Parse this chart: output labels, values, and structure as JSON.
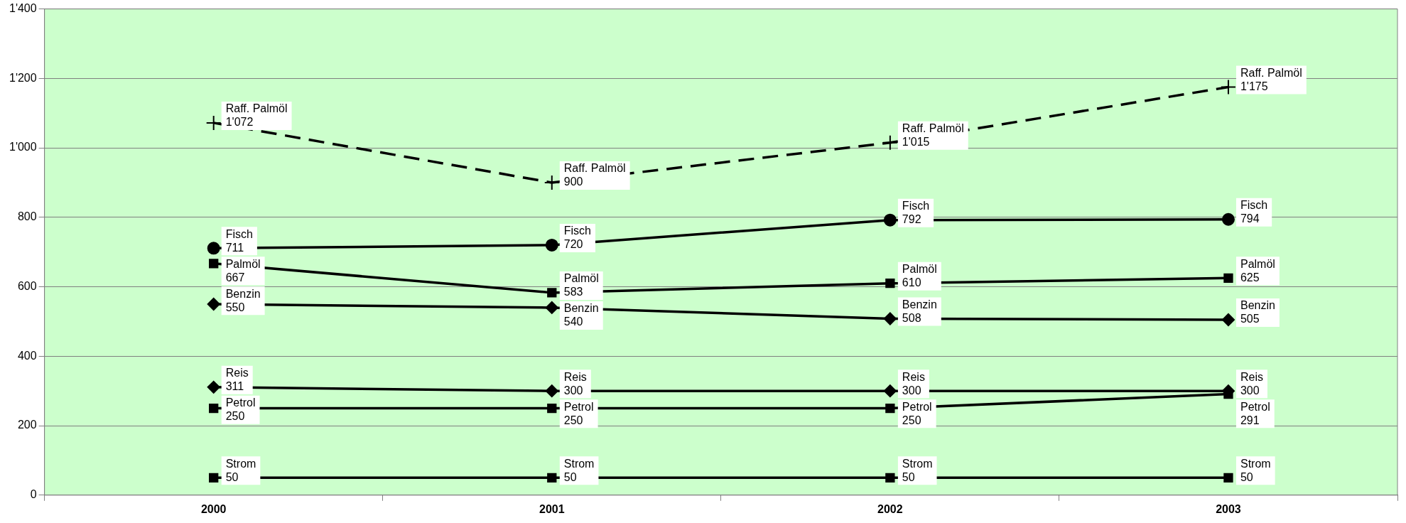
{
  "chart_data": {
    "type": "line",
    "categories": [
      "2000",
      "2001",
      "2002",
      "2003"
    ],
    "ylim": [
      0,
      1400
    ],
    "yticks": [
      0,
      {
        "value": 200,
        "label": "200"
      },
      {
        "value": 400,
        "label": "400"
      },
      {
        "value": 600,
        "label": "600"
      },
      {
        "value": 800,
        "label": "800"
      },
      {
        "value": 1000,
        "label": "1'000"
      },
      {
        "value": 1200,
        "label": "1'200"
      },
      {
        "value": 1400,
        "label": "1'400"
      }
    ],
    "grid": "y",
    "legend": false,
    "data_labels": true,
    "series": [
      {
        "name": "Raff. Palmöl",
        "color": "#000000",
        "values": [
          1072,
          900,
          1015,
          1175
        ],
        "value_labels": [
          "1'072",
          "900",
          "1'015",
          "1'175"
        ],
        "marker": "cross",
        "line_style": "dashed"
      },
      {
        "name": "Fisch",
        "color": "#000000",
        "values": [
          711,
          720,
          792,
          794
        ],
        "marker": "circle",
        "line_style": "solid"
      },
      {
        "name": "Palmöl",
        "color": "#000000",
        "values": [
          667,
          583,
          610,
          625
        ],
        "marker": "square",
        "line_style": "solid"
      },
      {
        "name": "Benzin",
        "color": "#000000",
        "values": [
          550,
          540,
          508,
          505
        ],
        "marker": "diamond",
        "line_style": "solid"
      },
      {
        "name": "Reis",
        "color": "#000000",
        "values": [
          311,
          300,
          300,
          300
        ],
        "marker": "diamond",
        "line_style": "solid"
      },
      {
        "name": "Petrol",
        "color": "#000000",
        "values": [
          250,
          250,
          250,
          291
        ],
        "marker": "square",
        "line_style": "solid"
      },
      {
        "name": "Strom",
        "color": "#000000",
        "values": [
          50,
          50,
          50,
          50
        ],
        "marker": "square",
        "line_style": "solid"
      }
    ]
  }
}
